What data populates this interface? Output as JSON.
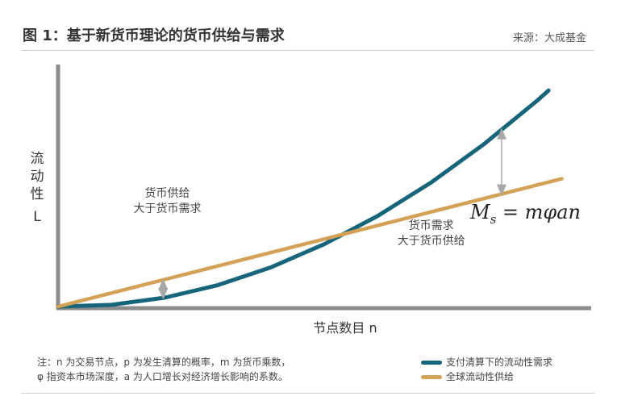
{
  "header": {
    "title": "图 1：基于新货币理论的货币供给与需求",
    "source": "来源：大成基金"
  },
  "footer": {
    "note_line1": "注：n 为交易节点，p 为发生清算的概率，m 为货币乘数，",
    "note_line2": "φ 指资本市场深度，a 为人口增长对经济增长影响的系数。"
  },
  "colors": {
    "demand": "#16657a",
    "supply": "#d4a256",
    "axis": "#8c8c8c",
    "arrow": "#a8a8a8"
  },
  "chart_data": {
    "type": "line",
    "title": "图 1：基于新货币理论的货币供给与需求",
    "xlabel": "节点数目 n",
    "ylabel": "流动性 L",
    "xlim": [
      0,
      10
    ],
    "ylim": [
      0,
      10
    ],
    "grid": false,
    "legend": "bottom-right",
    "series": [
      {
        "name": "支付清算下的流动性需求",
        "color": "#16657a",
        "x": [
          0,
          1,
          2,
          3,
          4,
          5,
          6,
          7,
          8,
          9,
          9.2
        ],
        "y": [
          0,
          0.07,
          0.37,
          0.9,
          1.65,
          2.62,
          3.8,
          5.2,
          6.82,
          8.65,
          9.05
        ]
      },
      {
        "name": "全球流动性供给",
        "color": "#d4a256",
        "x": [
          0,
          9.45
        ],
        "y": [
          0,
          5.35
        ]
      }
    ],
    "annotations": [
      {
        "text": "货币供给",
        "x": 2.05,
        "y": 4.6
      },
      {
        "text": "大于货币需求",
        "x": 2.05,
        "y": 3.95
      },
      {
        "text": "货币需求",
        "x": 7.0,
        "y": 3.25
      },
      {
        "text": "大于货币供给",
        "x": 7.0,
        "y": 2.6
      }
    ],
    "formula": {
      "M": "M",
      "sub": "s",
      "rhs": " = mφan"
    }
  }
}
